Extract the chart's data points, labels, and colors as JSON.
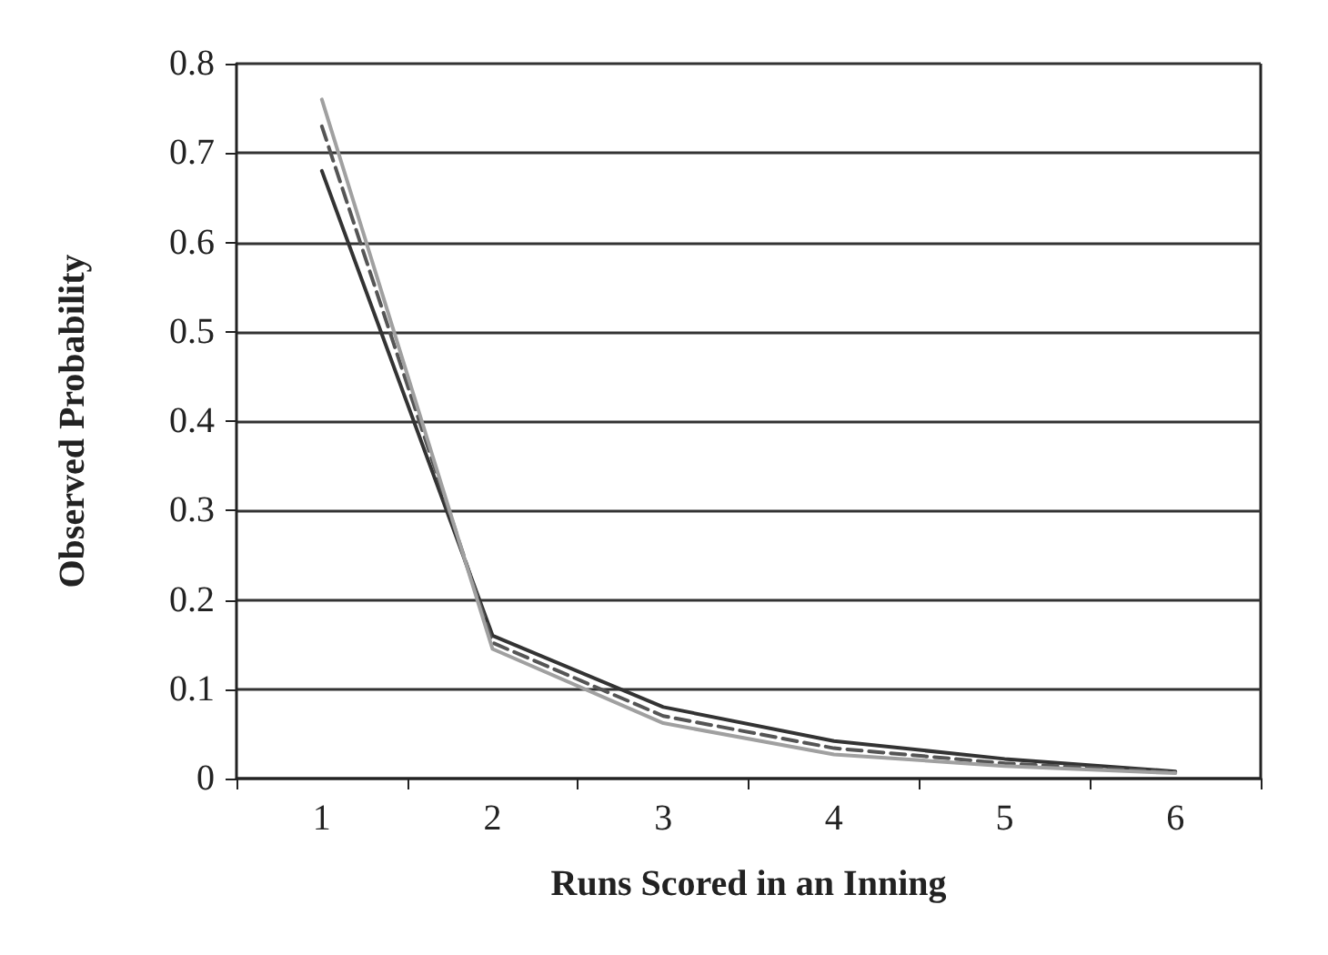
{
  "chart_data": {
    "type": "line",
    "xlabel": "Runs Scored in an Inning",
    "ylabel": "Observed Probability",
    "categories": [
      "1",
      "2",
      "3",
      "4",
      "5",
      "6"
    ],
    "series": [
      {
        "color": "#333333",
        "line_style": "solid",
        "values": [
          0.68,
          0.16,
          0.08,
          0.042,
          0.022,
          0.008
        ]
      },
      {
        "color": "#555555",
        "line_style": "dashed",
        "values": [
          0.73,
          0.152,
          0.07,
          0.034,
          0.017,
          0.007
        ]
      },
      {
        "color": "#a0a0a0",
        "line_style": "solid",
        "values": [
          0.76,
          0.145,
          0.062,
          0.027,
          0.014,
          0.006
        ]
      }
    ],
    "ylim": [
      0,
      0.8
    ],
    "yticks": [
      0,
      0.1,
      0.2,
      0.3,
      0.4,
      0.5,
      0.6,
      0.7,
      0.8
    ],
    "grid": "y",
    "marker": "none"
  }
}
